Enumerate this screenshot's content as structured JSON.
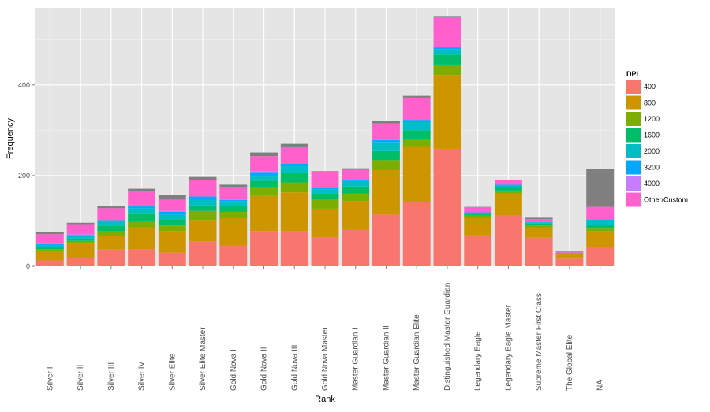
{
  "chart_data": {
    "type": "bar",
    "stacked": true,
    "title": "",
    "xlabel": "Rank",
    "ylabel": "Frequency",
    "ylim": [
      0,
      570
    ],
    "yticks": [
      0,
      200,
      400
    ],
    "grid": true,
    "legend": {
      "title": "DPI",
      "position": "right"
    },
    "categories": [
      "Silver I",
      "Silver II",
      "Silver III",
      "Silver IV",
      "Silver Elite",
      "Silver Elite Master",
      "Gold Nova I",
      "Gold Nova II",
      "Gold Nova III",
      "Gold Nova Master",
      "Master Guardian I",
      "Master Guardian II",
      "Master Guardian Elite",
      "Distinguished Master Guardian",
      "Legendary Eagle",
      "Legendary Eagle Master",
      "Supreme Master First Class",
      "The Global Elite",
      "NA"
    ],
    "series": [
      {
        "name": "400",
        "color": "#F8766D",
        "values": [
          13,
          18,
          37,
          38,
          30,
          55,
          46,
          78,
          77,
          64,
          80,
          114,
          142,
          259,
          68,
          112,
          63,
          17,
          42
        ]
      },
      {
        "name": "800",
        "color": "#CD9600",
        "values": [
          20,
          32,
          30,
          48,
          48,
          47,
          60,
          77,
          86,
          63,
          64,
          98,
          123,
          163,
          38,
          48,
          23,
          9,
          35
        ]
      },
      {
        "name": "1200",
        "color": "#7CAE00",
        "values": [
          5,
          6,
          10,
          12,
          12,
          20,
          14,
          20,
          22,
          20,
          16,
          22,
          15,
          23,
          6,
          7,
          4,
          2,
          6
        ]
      },
      {
        "name": "1600",
        "color": "#00BE67",
        "values": [
          5,
          5,
          13,
          18,
          14,
          12,
          13,
          14,
          20,
          14,
          16,
          20,
          20,
          22,
          4,
          8,
          4,
          1,
          8
        ]
      },
      {
        "name": "2000",
        "color": "#00BFC4",
        "values": [
          4,
          6,
          10,
          12,
          10,
          12,
          10,
          9,
          15,
          8,
          12,
          20,
          18,
          12,
          2,
          4,
          3,
          1,
          12
        ]
      },
      {
        "name": "3200",
        "color": "#00A9FF",
        "values": [
          2,
          2,
          2,
          4,
          6,
          8,
          3,
          10,
          6,
          3,
          3,
          4,
          5,
          4,
          1,
          1,
          1,
          0,
          1
        ]
      },
      {
        "name": "4000",
        "color": "#C77CFF",
        "values": [
          0,
          2,
          0,
          0,
          2,
          0,
          2,
          2,
          0,
          0,
          0,
          2,
          0,
          0,
          0,
          0,
          0,
          0,
          0
        ]
      },
      {
        "name": "Other/Custom",
        "color": "#FF61CC",
        "values": [
          22,
          22,
          26,
          34,
          25,
          36,
          26,
          33,
          38,
          37,
          22,
          35,
          49,
          67,
          11,
          11,
          6,
          3,
          27
        ]
      },
      {
        "name": "",
        "color": "#7F7F7F",
        "values": [
          5,
          3,
          4,
          5,
          10,
          7,
          6,
          8,
          6,
          1,
          3,
          5,
          4,
          2,
          1,
          0,
          3,
          1,
          84
        ]
      }
    ]
  }
}
